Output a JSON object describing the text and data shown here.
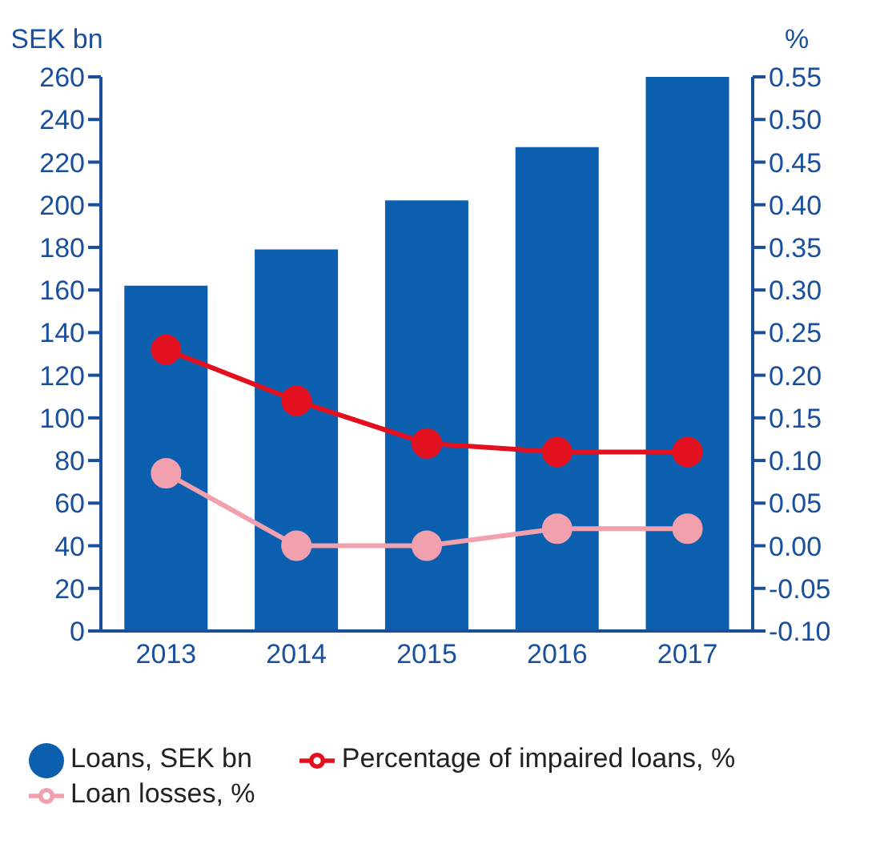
{
  "chart_data": {
    "type": "bar",
    "categories": [
      "2013",
      "2014",
      "2015",
      "2016",
      "2017"
    ],
    "ylabel": "SEK bn",
    "y2label": "%",
    "ylim": [
      0,
      260
    ],
    "yticks": [
      0,
      20,
      40,
      60,
      80,
      100,
      120,
      140,
      160,
      180,
      200,
      220,
      240,
      260
    ],
    "y2lim": [
      -0.1,
      0.55
    ],
    "y2ticks": [
      {
        "value": -0.1,
        "label": "-0.10"
      },
      {
        "value": -0.05,
        "label": "-0.05"
      },
      {
        "value": 0,
        "label": "0.00"
      },
      {
        "value": 0.05,
        "label": "0.05"
      },
      {
        "value": 0.1,
        "label": "0.10"
      },
      {
        "value": 0.15,
        "label": "0.15"
      },
      {
        "value": 0.2,
        "label": "0.20"
      },
      {
        "value": 0.25,
        "label": "0.25"
      },
      {
        "value": 0.3,
        "label": "0.30"
      },
      {
        "value": 0.35,
        "label": "0.35"
      },
      {
        "value": 0.4,
        "label": "0.40"
      },
      {
        "value": 0.45,
        "label": "0.45"
      },
      {
        "value": 0.5,
        "label": "0.50"
      },
      {
        "value": 0.55,
        "label": "0.55"
      }
    ],
    "series": [
      {
        "name": "Loans, SEK bn",
        "color": "#0b5fae",
        "values": [
          162,
          179,
          202,
          227,
          260
        ]
      },
      {
        "name": "Percentage of impaired loans, %",
        "type": "line",
        "axis": "y2",
        "color": "#e3101f",
        "values": [
          0.23,
          0.17,
          0.12,
          0.11,
          0.11
        ]
      },
      {
        "name": "Loan losses, %",
        "type": "line",
        "axis": "y2",
        "color": "#f2a0ae",
        "values": [
          0.085,
          0.0,
          0.0,
          0.02,
          0.02
        ]
      }
    ],
    "marker": "circle",
    "grid": false,
    "legend": "bottom"
  }
}
